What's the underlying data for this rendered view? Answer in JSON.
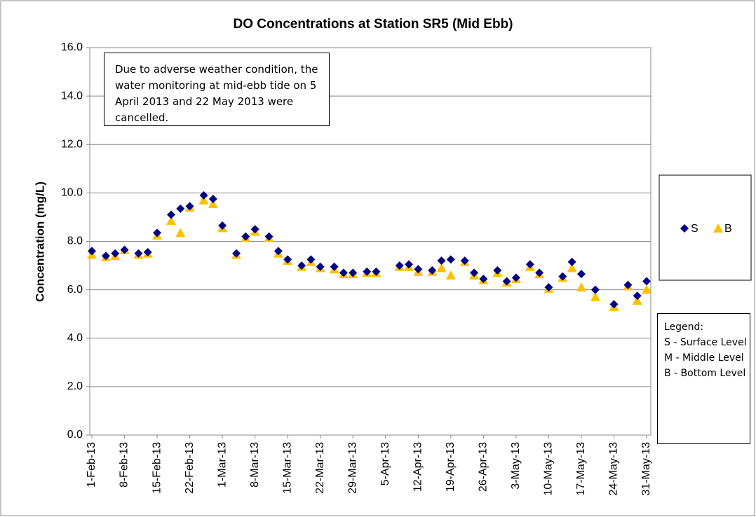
{
  "chart_data": {
    "type": "scatter",
    "title": "DO Concentrations at Station SR5 (Mid Ebb)",
    "y_label": "Concentration (mg/L)",
    "annotation": "Due  to adverse weather condition, the  water monitoring at mid-ebb tide on 5 April 2013  and 22 May 2013 were cancelled.",
    "note": {
      "title": "Legend:",
      "lines": [
        "S - Surface Level",
        "M - Middle Level",
        "B - Bottom Level"
      ]
    },
    "xlim": [
      "2013-02-01",
      "2013-05-31"
    ],
    "xticks": [
      {
        "value": "2013-02-01",
        "label": "1-Feb-13"
      },
      {
        "value": "2013-02-08",
        "label": "8-Feb-13"
      },
      {
        "value": "2013-02-15",
        "label": "15-Feb-13"
      },
      {
        "value": "2013-02-22",
        "label": "22-Feb-13"
      },
      {
        "value": "2013-03-01",
        "label": "1-Mar-13"
      },
      {
        "value": "2013-03-08",
        "label": "8-Mar-13"
      },
      {
        "value": "2013-03-15",
        "label": "15-Mar-13"
      },
      {
        "value": "2013-03-22",
        "label": "22-Mar-13"
      },
      {
        "value": "2013-03-29",
        "label": "29-Mar-13"
      },
      {
        "value": "2013-04-05",
        "label": "5-Apr-13"
      },
      {
        "value": "2013-04-12",
        "label": "12-Apr-13"
      },
      {
        "value": "2013-04-19",
        "label": "19-Apr-13"
      },
      {
        "value": "2013-04-26",
        "label": "26-Apr-13"
      },
      {
        "value": "2013-05-03",
        "label": "3-May-13"
      },
      {
        "value": "2013-05-10",
        "label": "10-May-13"
      },
      {
        "value": "2013-05-17",
        "label": "17-May-13"
      },
      {
        "value": "2013-05-24",
        "label": "24-May-13"
      },
      {
        "value": "2013-05-31",
        "label": "31-May-13"
      }
    ],
    "ylim": [
      0,
      16
    ],
    "yticks": [
      {
        "value": 0,
        "label": "0.0"
      },
      {
        "value": 2,
        "label": "2.0"
      },
      {
        "value": 4,
        "label": "4.0"
      },
      {
        "value": 6,
        "label": "6.0"
      },
      {
        "value": 8,
        "label": "8.0"
      },
      {
        "value": 10,
        "label": "10.0"
      },
      {
        "value": 12,
        "label": "12.0"
      },
      {
        "value": 14,
        "label": "14.0"
      },
      {
        "value": 16,
        "label": "16.0"
      }
    ],
    "grid": true,
    "legend": "right",
    "x": [
      "2013-02-01",
      "2013-02-04",
      "2013-02-06",
      "2013-02-08",
      "2013-02-11",
      "2013-02-13",
      "2013-02-15",
      "2013-02-18",
      "2013-02-20",
      "2013-02-22",
      "2013-02-25",
      "2013-02-27",
      "2013-03-01",
      "2013-03-04",
      "2013-03-06",
      "2013-03-08",
      "2013-03-11",
      "2013-03-13",
      "2013-03-15",
      "2013-03-18",
      "2013-03-20",
      "2013-03-22",
      "2013-03-25",
      "2013-03-27",
      "2013-03-29",
      "2013-04-01",
      "2013-04-03",
      "2013-04-08",
      "2013-04-10",
      "2013-04-12",
      "2013-04-15",
      "2013-04-17",
      "2013-04-19",
      "2013-04-22",
      "2013-04-24",
      "2013-04-26",
      "2013-04-29",
      "2013-05-01",
      "2013-05-03",
      "2013-05-06",
      "2013-05-08",
      "2013-05-10",
      "2013-05-13",
      "2013-05-15",
      "2013-05-17",
      "2013-05-20",
      "2013-05-24",
      "2013-05-27",
      "2013-05-29",
      "2013-05-31"
    ],
    "series": [
      {
        "name": "S",
        "color": "#000080",
        "marker": "diamond",
        "values": [
          7.6,
          7.4,
          7.5,
          7.65,
          7.5,
          7.55,
          8.35,
          9.1,
          9.35,
          9.45,
          9.9,
          9.75,
          8.65,
          7.5,
          8.2,
          8.5,
          8.2,
          7.6,
          7.25,
          7.0,
          7.25,
          6.95,
          6.95,
          6.7,
          6.7,
          6.75,
          6.75,
          7.0,
          7.05,
          6.85,
          6.8,
          7.2,
          7.25,
          7.2,
          6.7,
          6.45,
          6.8,
          6.35,
          6.5,
          7.05,
          6.7,
          6.1,
          6.55,
          7.15,
          6.65,
          6.0,
          5.4,
          6.2,
          5.75,
          6.35
        ]
      },
      {
        "name": "B",
        "color": "#ffc000",
        "marker": "triangle",
        "values": [
          7.45,
          7.35,
          7.4,
          7.65,
          7.45,
          7.5,
          8.25,
          8.85,
          8.35,
          9.4,
          9.7,
          9.55,
          8.55,
          7.45,
          8.15,
          8.4,
          8.15,
          7.5,
          7.2,
          6.95,
          7.15,
          6.9,
          6.85,
          6.65,
          6.65,
          6.7,
          6.7,
          6.95,
          6.95,
          6.75,
          6.75,
          6.9,
          6.6,
          7.15,
          6.6,
          6.4,
          6.7,
          6.3,
          6.45,
          6.95,
          6.65,
          6.05,
          6.5,
          6.9,
          6.1,
          5.7,
          5.3,
          6.15,
          5.55,
          6.0
        ]
      }
    ]
  }
}
